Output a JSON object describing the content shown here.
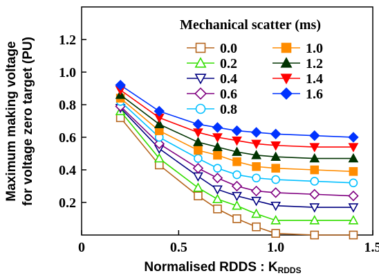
{
  "chart_data": {
    "type": "line",
    "title": "",
    "xlabel": "Normalised RDDS : K",
    "xlabel_sub": "RDDS",
    "ylabel_line1": "Maximum making voltage",
    "ylabel_line2": "for voltage zero target (PU)",
    "xlim": [
      0,
      1.5
    ],
    "ylim": [
      0,
      1.4
    ],
    "x_ticks": [
      "0",
      "0.5",
      "1.0",
      "1.5"
    ],
    "y_ticks": [
      "0.2",
      "0.4",
      "0.6",
      "0.8",
      "1.0",
      "1.2"
    ],
    "legend_title": "Mechanical scatter (ms)",
    "x": [
      0.2,
      0.4,
      0.6,
      0.7,
      0.8,
      0.9,
      1.0,
      1.2,
      1.4
    ],
    "series": [
      {
        "name": "0.0",
        "color": "#b5651d",
        "marker": "square-open",
        "values": [
          0.72,
          0.43,
          0.24,
          0.16,
          0.1,
          0.05,
          0.01,
          0.0,
          0.0
        ]
      },
      {
        "name": "0.2",
        "color": "#33dd00",
        "marker": "triangle-up-open",
        "values": [
          0.76,
          0.47,
          0.29,
          0.22,
          0.18,
          0.13,
          0.09,
          0.09,
          0.09
        ]
      },
      {
        "name": "0.4",
        "color": "#000080",
        "marker": "triangle-down-open",
        "values": [
          0.78,
          0.53,
          0.36,
          0.28,
          0.24,
          0.21,
          0.18,
          0.17,
          0.17
        ]
      },
      {
        "name": "0.6",
        "color": "#800080",
        "marker": "diamond-open",
        "values": [
          0.79,
          0.56,
          0.41,
          0.35,
          0.3,
          0.27,
          0.26,
          0.25,
          0.24
        ]
      },
      {
        "name": "0.8",
        "color": "#00bfff",
        "marker": "circle-open",
        "values": [
          0.82,
          0.6,
          0.47,
          0.41,
          0.37,
          0.35,
          0.34,
          0.33,
          0.32
        ]
      },
      {
        "name": "1.0",
        "color": "#ff8c00",
        "marker": "square",
        "values": [
          0.84,
          0.64,
          0.52,
          0.49,
          0.45,
          0.42,
          0.41,
          0.4,
          0.39
        ]
      },
      {
        "name": "1.2",
        "color": "#003300",
        "marker": "triangle-up",
        "values": [
          0.86,
          0.68,
          0.57,
          0.54,
          0.51,
          0.49,
          0.48,
          0.47,
          0.47
        ]
      },
      {
        "name": "1.4",
        "color": "#ff0000",
        "marker": "triangle-down",
        "values": [
          0.89,
          0.72,
          0.63,
          0.6,
          0.58,
          0.56,
          0.55,
          0.54,
          0.54
        ]
      },
      {
        "name": "1.6",
        "color": "#0033ff",
        "marker": "diamond",
        "values": [
          0.92,
          0.76,
          0.68,
          0.66,
          0.64,
          0.63,
          0.62,
          0.61,
          0.6
        ]
      }
    ],
    "grid": false,
    "legend_position": "top-right"
  }
}
